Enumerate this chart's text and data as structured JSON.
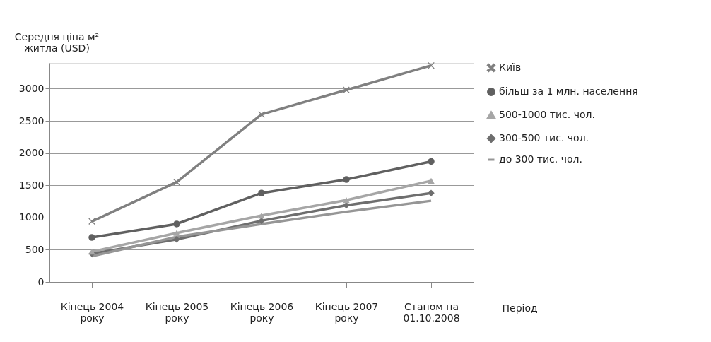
{
  "chart_data": {
    "type": "line",
    "ylabel": "Середня ціна м² житла (USD)",
    "xlabel": "Період",
    "categories": [
      "Кінець 2004 року",
      "Кінець 2005 року",
      "Кінець 2006 року",
      "Кінець 2007 року",
      "Станом на 01.10.2008"
    ],
    "ylim": [
      0,
      3400
    ],
    "yticks": [
      0,
      500,
      1000,
      1500,
      2000,
      2500,
      3000
    ],
    "grid": "y",
    "legend": "right",
    "line_style": "solid",
    "series": [
      {
        "name": "Київ",
        "color": "#808080",
        "marker": "cross",
        "values": [
          940,
          1550,
          2600,
          2980,
          3360
        ]
      },
      {
        "name": "більш за 1 млн. населення",
        "color": "#606060",
        "marker": "circle",
        "values": [
          690,
          900,
          1380,
          1590,
          1870
        ]
      },
      {
        "name": "500-1000 тис. чол.",
        "color": "#a6a6a6",
        "marker": "triangle",
        "values": [
          470,
          760,
          1030,
          1270,
          1570
        ]
      },
      {
        "name": "300-500 тис. чол.",
        "color": "#6e6e6e",
        "marker": "diamond",
        "values": [
          440,
          660,
          950,
          1190,
          1380
        ]
      },
      {
        "name": "до 300 тис. чол.",
        "color": "#969696",
        "marker": "none",
        "values": [
          400,
          700,
          900,
          1090,
          1260
        ]
      }
    ]
  }
}
